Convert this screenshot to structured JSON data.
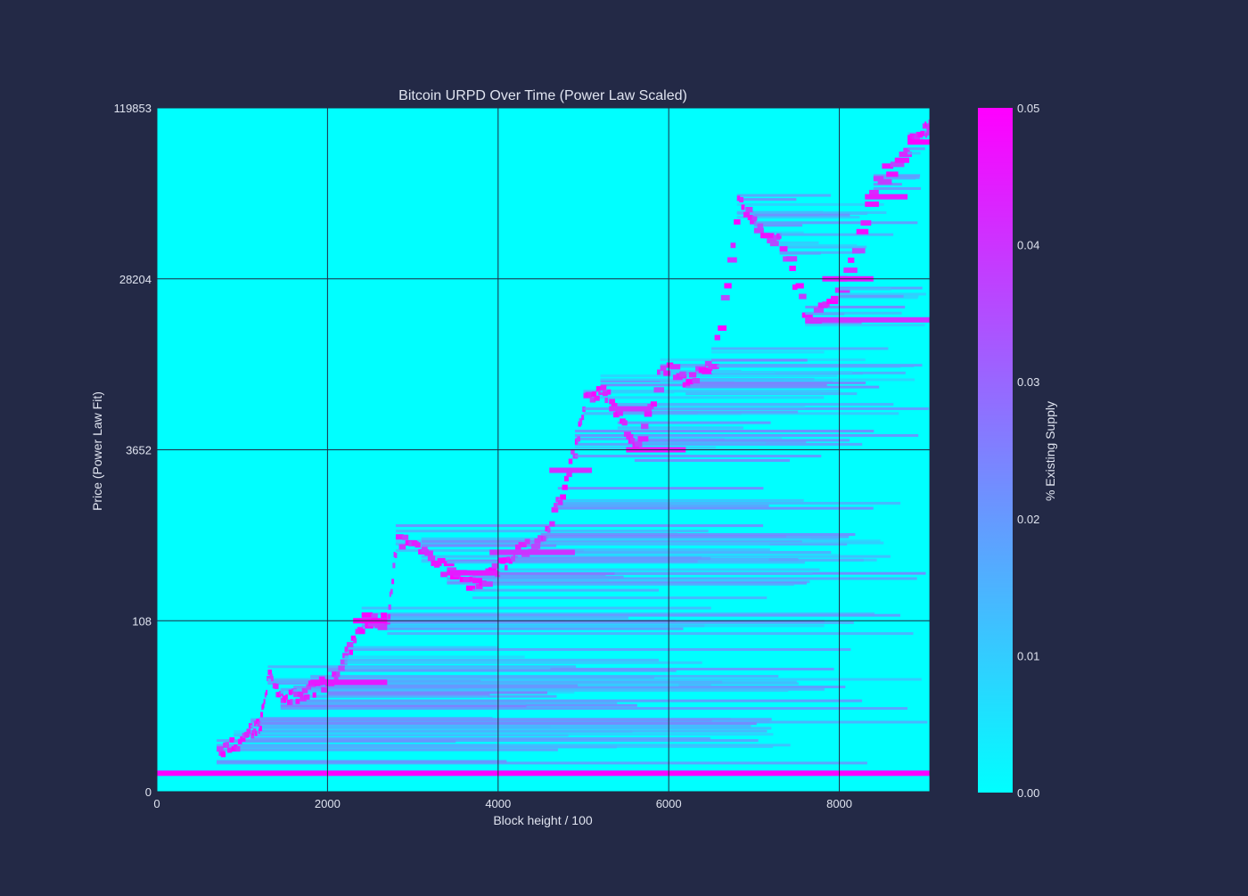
{
  "chart_data": {
    "type": "heatmap",
    "title": "Bitcoin URPD Over Time (Power Law Scaled)",
    "xlabel": "Block height / 100",
    "ylabel": "Price (Power Law Fit)",
    "xlim": [
      0,
      9060
    ],
    "x_ticks": [
      0,
      2000,
      4000,
      6000,
      8000
    ],
    "y_ticks": [
      {
        "label": "0",
        "fraction": 0.0
      },
      {
        "label": "108",
        "fraction": 0.25
      },
      {
        "label": "3652",
        "fraction": 0.5
      },
      {
        "label": "28204",
        "fraction": 0.75
      },
      {
        "label": "119853",
        "fraction": 1.0
      }
    ],
    "grid": true,
    "colorbar": {
      "label": "% Existing Supply",
      "range": [
        0.0,
        0.05
      ],
      "ticks": [
        "0.00",
        "0.01",
        "0.02",
        "0.03",
        "0.04",
        "0.05"
      ],
      "colors": [
        "#00ffff",
        "#ff00ff"
      ]
    },
    "background_color": "#00ffff",
    "concentration_color": "#ff00ff",
    "concentration_points": [
      {
        "x": 700,
        "y": 0.055
      },
      {
        "x": 900,
        "y": 0.07
      },
      {
        "x": 1100,
        "y": 0.09
      },
      {
        "x": 1200,
        "y": 0.1
      },
      {
        "x": 1300,
        "y": 0.17
      },
      {
        "x": 1450,
        "y": 0.13
      },
      {
        "x": 1600,
        "y": 0.14
      },
      {
        "x": 1800,
        "y": 0.15
      },
      {
        "x": 2000,
        "y": 0.16
      },
      {
        "x": 2200,
        "y": 0.2
      },
      {
        "x": 2400,
        "y": 0.25
      },
      {
        "x": 2700,
        "y": 0.25
      },
      {
        "x": 2800,
        "y": 0.37
      },
      {
        "x": 3100,
        "y": 0.35
      },
      {
        "x": 3400,
        "y": 0.32
      },
      {
        "x": 3700,
        "y": 0.3
      },
      {
        "x": 4000,
        "y": 0.33
      },
      {
        "x": 4200,
        "y": 0.35
      },
      {
        "x": 4500,
        "y": 0.37
      },
      {
        "x": 4700,
        "y": 0.43
      },
      {
        "x": 4900,
        "y": 0.51
      },
      {
        "x": 5000,
        "y": 0.57
      },
      {
        "x": 5200,
        "y": 0.59
      },
      {
        "x": 5400,
        "y": 0.55
      },
      {
        "x": 5600,
        "y": 0.5
      },
      {
        "x": 5900,
        "y": 0.62
      },
      {
        "x": 6200,
        "y": 0.6
      },
      {
        "x": 6500,
        "y": 0.63
      },
      {
        "x": 6800,
        "y": 0.86
      },
      {
        "x": 7000,
        "y": 0.83
      },
      {
        "x": 7300,
        "y": 0.8
      },
      {
        "x": 7600,
        "y": 0.69
      },
      {
        "x": 8000,
        "y": 0.74
      },
      {
        "x": 8400,
        "y": 0.89
      },
      {
        "x": 8800,
        "y": 0.95
      },
      {
        "x": 9000,
        "y": 0.97
      }
    ],
    "persistent_bands": [
      {
        "y": 0.027,
        "x_start": 0,
        "x_end": 9060,
        "intensity": 0.05
      },
      {
        "y": 0.16,
        "x_start": 1800,
        "x_end": 2700,
        "intensity": 0.045
      },
      {
        "y": 0.25,
        "x_start": 2300,
        "x_end": 2700,
        "intensity": 0.05
      },
      {
        "y": 0.32,
        "x_start": 3400,
        "x_end": 4000,
        "intensity": 0.045
      },
      {
        "y": 0.35,
        "x_start": 3900,
        "x_end": 4900,
        "intensity": 0.04
      },
      {
        "y": 0.47,
        "x_start": 4600,
        "x_end": 5100,
        "intensity": 0.04
      },
      {
        "y": 0.5,
        "x_start": 5500,
        "x_end": 6200,
        "intensity": 0.045
      },
      {
        "y": 0.56,
        "x_start": 5300,
        "x_end": 5800,
        "intensity": 0.04
      },
      {
        "y": 0.69,
        "x_start": 7600,
        "x_end": 9060,
        "intensity": 0.04
      },
      {
        "y": 0.75,
        "x_start": 7800,
        "x_end": 8400,
        "intensity": 0.045
      },
      {
        "y": 0.87,
        "x_start": 8300,
        "x_end": 8800,
        "intensity": 0.045
      },
      {
        "y": 0.95,
        "x_start": 8800,
        "x_end": 9060,
        "intensity": 0.05
      }
    ]
  }
}
